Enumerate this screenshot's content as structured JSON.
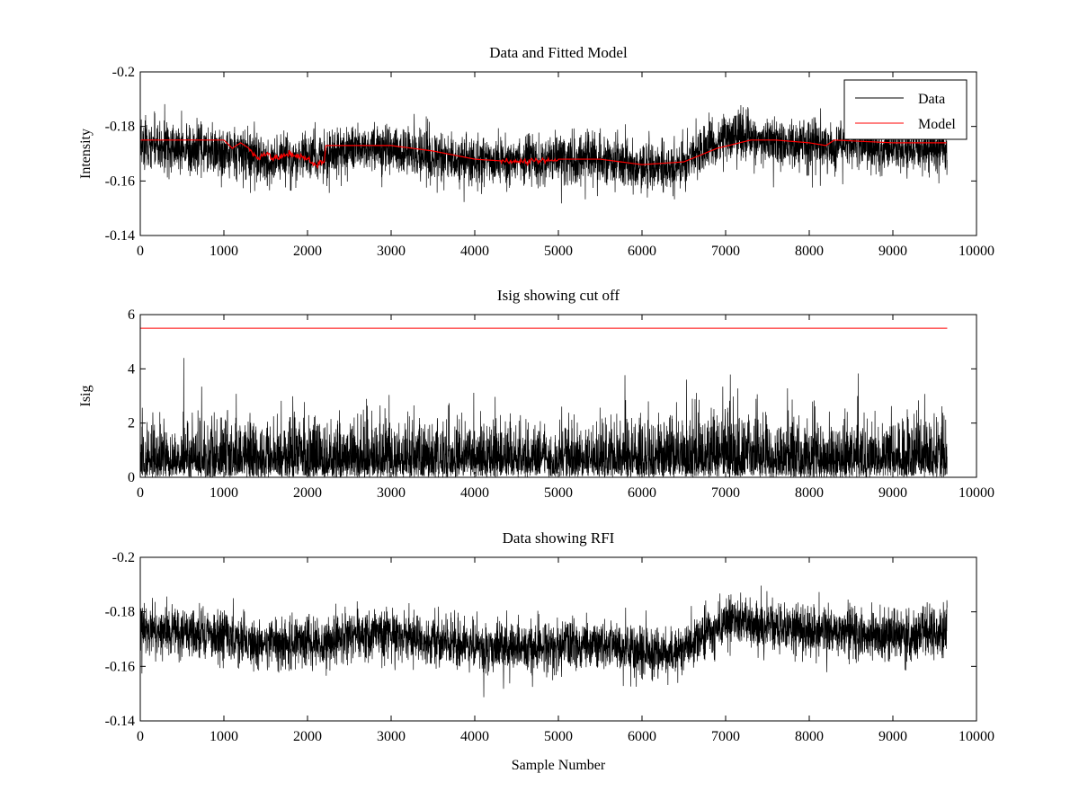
{
  "chart_data": [
    {
      "type": "line",
      "title": "Data and Fitted Model",
      "xlabel": "",
      "ylabel": "Intensity",
      "xlim": [
        0,
        10000
      ],
      "ylim": [
        -0.2,
        -0.14
      ],
      "y_axis_reversed": true,
      "xticks": [
        "0",
        "1000",
        "2000",
        "3000",
        "4000",
        "5000",
        "6000",
        "7000",
        "8000",
        "9000",
        "10000"
      ],
      "yticks": [
        "-0.14",
        "-0.16",
        "-0.18",
        "-0.2"
      ],
      "n_samples": 9650,
      "legend": {
        "placement": "top-right",
        "entries": [
          "Data",
          "Model"
        ]
      },
      "series": [
        {
          "name": "Data",
          "color": "#000000",
          "kind": "noisy",
          "noise_sigma": 0.0045,
          "baseline": [
            [
              0,
              -0.173
            ],
            [
              500,
              -0.172
            ],
            [
              1000,
              -0.171
            ],
            [
              1500,
              -0.168
            ],
            [
              2000,
              -0.169
            ],
            [
              2200,
              -0.168
            ],
            [
              2500,
              -0.172
            ],
            [
              3000,
              -0.172
            ],
            [
              3500,
              -0.169
            ],
            [
              4000,
              -0.167
            ],
            [
              4500,
              -0.167
            ],
            [
              5000,
              -0.168
            ],
            [
              5500,
              -0.168
            ],
            [
              6000,
              -0.165
            ],
            [
              6400,
              -0.165
            ],
            [
              6800,
              -0.172
            ],
            [
              7100,
              -0.177
            ],
            [
              7500,
              -0.175
            ],
            [
              8000,
              -0.173
            ],
            [
              8500,
              -0.173
            ],
            [
              9000,
              -0.172
            ],
            [
              9650,
              -0.172
            ]
          ]
        },
        {
          "name": "Model",
          "color": "#ff0000",
          "kind": "smooth",
          "points": [
            [
              0,
              -0.175
            ],
            [
              450,
              -0.175
            ],
            [
              1000,
              -0.175
            ],
            [
              1100,
              -0.172
            ],
            [
              1200,
              -0.174
            ],
            [
              1300,
              -0.172
            ],
            [
              1400,
              -0.168
            ],
            [
              1500,
              -0.17
            ],
            [
              1600,
              -0.168
            ],
            [
              1700,
              -0.169
            ],
            [
              1800,
              -0.17
            ],
            [
              1900,
              -0.169
            ],
            [
              2000,
              -0.168
            ],
            [
              2100,
              -0.166
            ],
            [
              2200,
              -0.167
            ],
            [
              2220,
              -0.173
            ],
            [
              3000,
              -0.173
            ],
            [
              3500,
              -0.171
            ],
            [
              4000,
              -0.168
            ],
            [
              4500,
              -0.167
            ],
            [
              5000,
              -0.168
            ],
            [
              5500,
              -0.168
            ],
            [
              6000,
              -0.166
            ],
            [
              6500,
              -0.167
            ],
            [
              6900,
              -0.172
            ],
            [
              7300,
              -0.175
            ],
            [
              7600,
              -0.175
            ],
            [
              8000,
              -0.174
            ],
            [
              8200,
              -0.173
            ],
            [
              8300,
              -0.175
            ],
            [
              9000,
              -0.174
            ],
            [
              9650,
              -0.174
            ]
          ]
        }
      ]
    },
    {
      "type": "line",
      "title": "Isig showing cut off",
      "xlabel": "",
      "ylabel": "Isig",
      "xlim": [
        0,
        10000
      ],
      "ylim": [
        0,
        6
      ],
      "xticks": [
        "0",
        "1000",
        "2000",
        "3000",
        "4000",
        "5000",
        "6000",
        "7000",
        "8000",
        "9000",
        "10000"
      ],
      "yticks": [
        "0",
        "2",
        "4",
        "6"
      ],
      "n_samples": 9650,
      "series": [
        {
          "color": "#000000",
          "kind": "abs-noise",
          "typical_max": 3.5,
          "peak": [
            520,
            4.4
          ]
        },
        {
          "color": "#ff0000",
          "kind": "threshold",
          "value": 5.5,
          "x_range": [
            0,
            9650
          ]
        }
      ]
    },
    {
      "type": "line",
      "title": "Data showing RFI",
      "xlabel": "Sample Number",
      "ylabel": "",
      "xlim": [
        0,
        10000
      ],
      "ylim": [
        -0.2,
        -0.14
      ],
      "y_axis_reversed": true,
      "xticks": [
        "0",
        "1000",
        "2000",
        "3000",
        "4000",
        "5000",
        "6000",
        "7000",
        "8000",
        "9000",
        "10000"
      ],
      "yticks": [
        "-0.14",
        "-0.16",
        "-0.18",
        "-0.2"
      ],
      "n_samples": 9650,
      "series": [
        {
          "color": "#000000",
          "kind": "noisy",
          "noise_sigma": 0.0045,
          "baseline": [
            [
              0,
              -0.173
            ],
            [
              500,
              -0.172
            ],
            [
              1000,
              -0.171
            ],
            [
              1500,
              -0.168
            ],
            [
              2000,
              -0.169
            ],
            [
              2200,
              -0.168
            ],
            [
              2500,
              -0.172
            ],
            [
              3000,
              -0.172
            ],
            [
              3500,
              -0.169
            ],
            [
              4000,
              -0.167
            ],
            [
              4500,
              -0.167
            ],
            [
              5000,
              -0.168
            ],
            [
              5500,
              -0.168
            ],
            [
              6000,
              -0.165
            ],
            [
              6400,
              -0.165
            ],
            [
              6800,
              -0.172
            ],
            [
              7100,
              -0.177
            ],
            [
              7500,
              -0.175
            ],
            [
              8000,
              -0.173
            ],
            [
              8500,
              -0.173
            ],
            [
              9000,
              -0.172
            ],
            [
              9650,
              -0.172
            ]
          ]
        }
      ]
    }
  ]
}
